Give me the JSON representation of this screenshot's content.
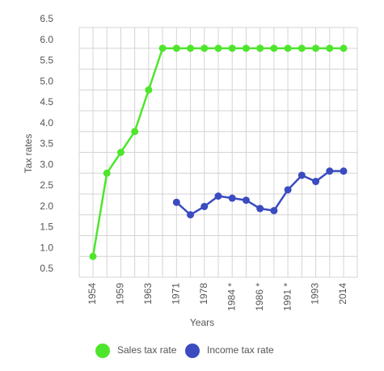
{
  "chart_data": {
    "type": "line",
    "x_label": "Years",
    "y_label": "Tax rates",
    "categories": [
      "1954",
      null,
      "1959",
      null,
      "1963",
      null,
      "1971",
      null,
      "1978",
      null,
      "1984 *",
      null,
      "1986 *",
      null,
      "1991 *",
      null,
      "1993",
      null,
      "2014"
    ],
    "series": [
      {
        "name": "Sales tax rate",
        "color": "#4ee62c",
        "values": [
          1.0,
          3.0,
          3.5,
          4.0,
          5.0,
          6.0,
          6.0,
          6.0,
          6.0,
          6.0,
          6.0,
          6.0,
          6.0,
          6.0,
          6.0,
          6.0,
          6.0,
          6.0,
          6.0
        ]
      },
      {
        "name": "Income tax rate",
        "color": "#3b4cc0",
        "values": [
          null,
          null,
          null,
          null,
          null,
          null,
          2.3,
          2.0,
          2.2,
          2.45,
          2.4,
          2.35,
          2.15,
          2.1,
          2.6,
          2.95,
          2.8,
          3.05,
          3.05
        ]
      }
    ],
    "ylim": [
      0.5,
      6.5
    ],
    "yticks": [
      0.5,
      {
        "value": 1,
        "label": "1.0"
      },
      1.5,
      {
        "value": 2,
        "label": "2.0"
      },
      2.5,
      {
        "value": 3,
        "label": "3.0"
      },
      3.5,
      {
        "value": 4,
        "label": "4.0"
      },
      4.5,
      {
        "value": 5,
        "label": "5.0"
      },
      5.5,
      {
        "value": 6,
        "label": "6.0"
      },
      6.5
    ],
    "grid": true,
    "legend": "bottom"
  }
}
